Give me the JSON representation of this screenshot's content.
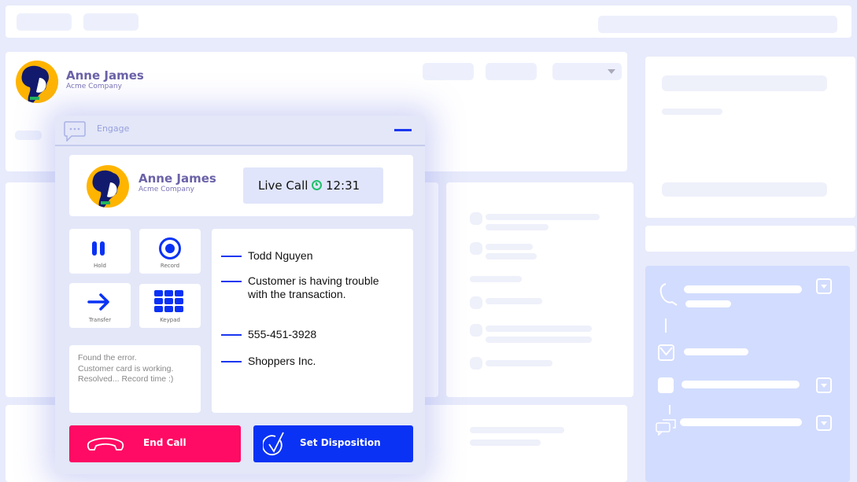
{
  "contact": {
    "name": "Anne James",
    "company": "Acme Company"
  },
  "widget": {
    "title": "Engage",
    "minimize_icon": "minimize-icon"
  },
  "call": {
    "status": "Live Call",
    "timer": "12:31",
    "timer_color": "#1fc16b"
  },
  "controls": [
    {
      "label": "Hold",
      "icon": "pause-icon"
    },
    {
      "label": "Record",
      "icon": "record-icon"
    },
    {
      "label": "Transfer",
      "icon": "arrow-right-icon"
    },
    {
      "label": "Keypad",
      "icon": "keypad-icon"
    }
  ],
  "notes": "Found the error.\nCustomer card is working.\nResolved... Record time :)",
  "details": [
    "Todd Nguyen",
    "Customer is having trouble with the transaction.",
    "555-451-3928",
    "Shoppers Inc."
  ],
  "buttons": {
    "end_call": "End Call",
    "set_disposition": "Set Disposition"
  },
  "colors": {
    "accent": "#0a32f5",
    "end_call": "#ff0a64",
    "background": "#e8ebfb",
    "timeline_panel": "#d2dcfe"
  }
}
